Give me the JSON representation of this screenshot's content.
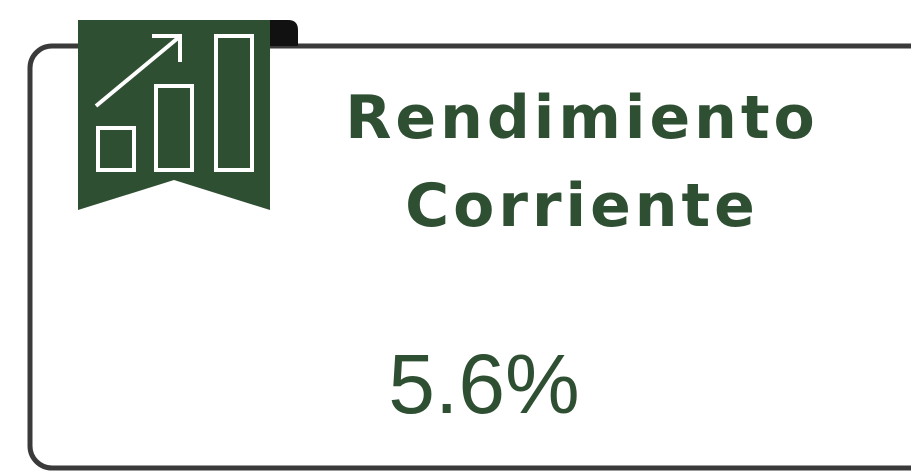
{
  "card": {
    "title_lines": [
      "Rendimiento",
      "Corriente"
    ],
    "value": "5.6%"
  }
}
